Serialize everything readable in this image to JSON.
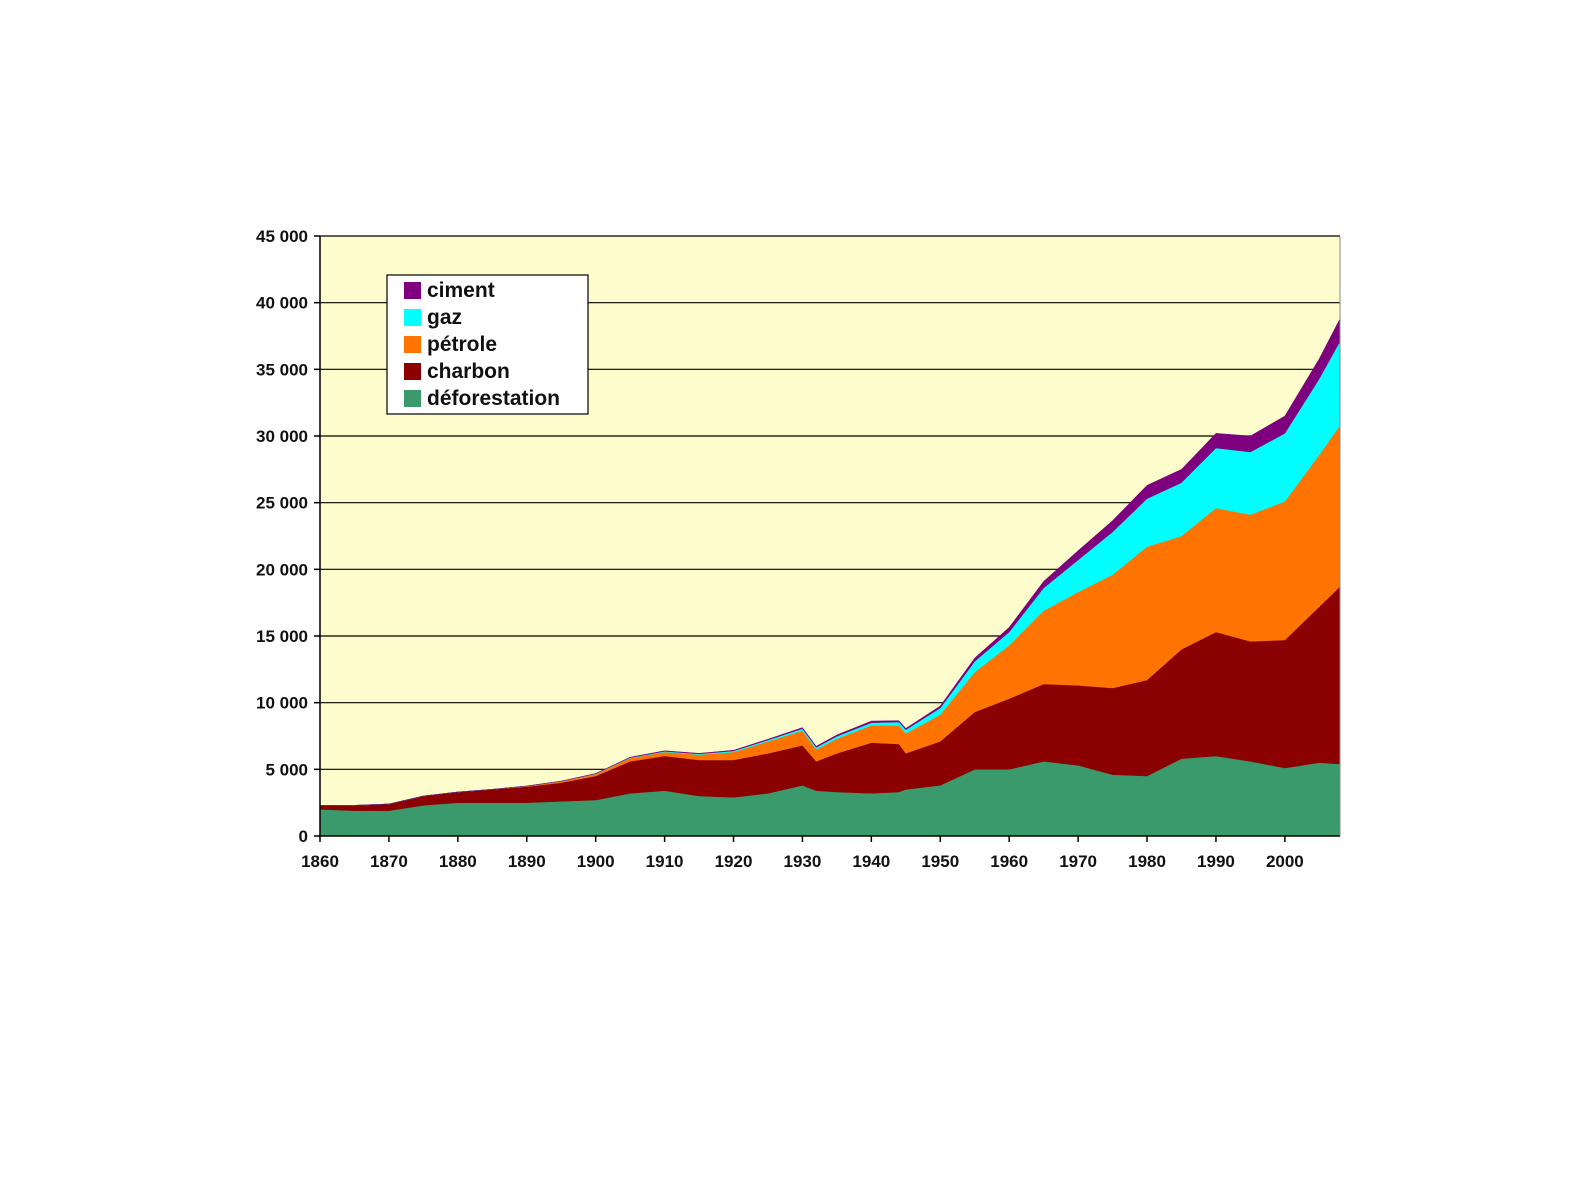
{
  "chart_data": {
    "type": "area",
    "stacked": true,
    "title": "",
    "xlabel": "",
    "ylabel": "",
    "xlim": [
      1860,
      2008
    ],
    "ylim": [
      0,
      45000
    ],
    "grid": true,
    "legend_position": "top-left",
    "background_color": "#fdfccd",
    "x_ticks": [
      1860,
      1870,
      1880,
      1890,
      1900,
      1910,
      1920,
      1930,
      1940,
      1950,
      1960,
      1970,
      1980,
      1990,
      2000
    ],
    "x_tick_labels": [
      "1860",
      "1870",
      "1880",
      "1890",
      "1900",
      "1910",
      "1920",
      "1930",
      "1940",
      "1950",
      "1960",
      "1970",
      "1980",
      "1990",
      "2000"
    ],
    "y_ticks": [
      0,
      5000,
      10000,
      15000,
      20000,
      25000,
      30000,
      35000,
      40000,
      45000
    ],
    "y_tick_labels": [
      "0",
      "5 000",
      "10 000",
      "15 000",
      "20 000",
      "25 000",
      "30 000",
      "35 000",
      "40 000",
      "45 000"
    ],
    "x": [
      1860,
      1865,
      1870,
      1875,
      1880,
      1885,
      1890,
      1895,
      1900,
      1905,
      1910,
      1915,
      1920,
      1925,
      1930,
      1932,
      1935,
      1940,
      1944,
      1945,
      1950,
      1955,
      1960,
      1965,
      1970,
      1975,
      1980,
      1985,
      1990,
      1995,
      2000,
      2005,
      2008
    ],
    "series": [
      {
        "name": "déforestation",
        "color": "#3a9a6b",
        "values": [
          2000,
          1900,
          1900,
          2300,
          2500,
          2500,
          2500,
          2600,
          2700,
          3200,
          3400,
          3000,
          2900,
          3200,
          3800,
          3400,
          3300,
          3200,
          3300,
          3500,
          3800,
          5000,
          5000,
          5600,
          5300,
          4600,
          4500,
          5800,
          6000,
          5600,
          5100,
          5500,
          5400
        ]
      },
      {
        "name": "charbon",
        "color": "#8b0000",
        "values": [
          300,
          400,
          500,
          700,
          800,
          1000,
          1200,
          1400,
          1800,
          2400,
          2600,
          2700,
          2800,
          3000,
          3000,
          2200,
          2900,
          3800,
          3600,
          2700,
          3300,
          4300,
          5300,
          5800,
          6000,
          6500,
          7200,
          8200,
          9300,
          9000,
          9600,
          11700,
          13300
        ]
      },
      {
        "name": "pétrole",
        "color": "#ff7400",
        "values": [
          0,
          0,
          0,
          0,
          0,
          0,
          50,
          100,
          150,
          250,
          300,
          400,
          600,
          900,
          1100,
          900,
          1100,
          1300,
          1400,
          1500,
          2000,
          3000,
          4000,
          5500,
          7000,
          8500,
          10000,
          8500,
          9300,
          9500,
          10400,
          11400,
          12100
        ]
      },
      {
        "name": "gaz",
        "color": "#00ffff",
        "values": [
          0,
          0,
          0,
          0,
          0,
          0,
          0,
          10,
          20,
          30,
          50,
          60,
          80,
          100,
          150,
          150,
          180,
          200,
          250,
          270,
          500,
          800,
          1000,
          1700,
          2400,
          3200,
          3600,
          4000,
          4500,
          4700,
          5100,
          5700,
          6300
        ]
      },
      {
        "name": "ciment",
        "color": "#7f007f",
        "values": [
          0,
          0,
          0,
          0,
          0,
          0,
          0,
          10,
          20,
          30,
          40,
          40,
          50,
          60,
          80,
          80,
          100,
          120,
          100,
          100,
          150,
          250,
          350,
          500,
          700,
          850,
          1000,
          1000,
          1100,
          1200,
          1300,
          1500,
          1700
        ]
      }
    ],
    "legend": [
      {
        "label": "ciment",
        "color": "#7f007f"
      },
      {
        "label": "gaz",
        "color": "#00ffff"
      },
      {
        "label": "pétrole",
        "color": "#ff7400"
      },
      {
        "label": "charbon",
        "color": "#8b0000"
      },
      {
        "label": "déforestation",
        "color": "#3a9a6b"
      }
    ]
  }
}
